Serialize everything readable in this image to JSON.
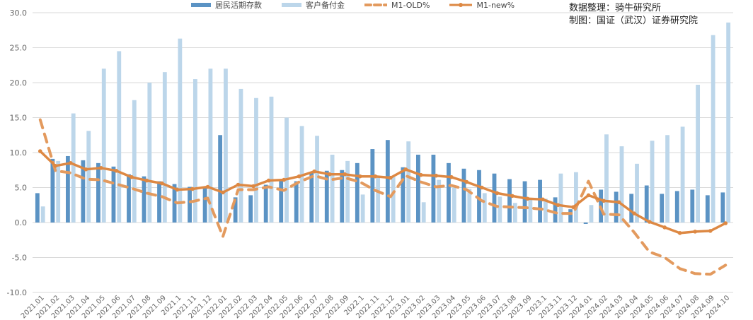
{
  "credits": {
    "source": "数据整理：骑牛研究所",
    "maker": "制图：国证（武汉）证券研究院"
  },
  "colors": {
    "deposit": "#5b93c4",
    "client": "#bcd6ea",
    "m1_old": "#e39a5e",
    "m1_new": "#dd8843",
    "grid": "#d9d9d9",
    "tick": "#666666"
  },
  "chart_data": {
    "type": "bar",
    "title": "",
    "xlabel": "",
    "ylabel": "",
    "ylim": [
      -10,
      30
    ],
    "yticks": [
      "-10.0",
      "-5.0",
      "0.0",
      "5.0",
      "10.0",
      "15.0",
      "20.0",
      "25.0",
      "30.0"
    ],
    "grid": true,
    "legend_position": "top",
    "categories": [
      "2021.01",
      "2021.02",
      "2021.03",
      "2021.04",
      "2021.05",
      "2021.06",
      "2021.07",
      "2021.08",
      "2021.09",
      "2021.1",
      "2021.11",
      "2021.12",
      "2022.01",
      "2022.02",
      "2022.03",
      "2022.04",
      "2022.05",
      "2022.06",
      "2022.07",
      "2022.08",
      "2022.09",
      "2022.1",
      "2022.11",
      "2022.12",
      "2023.01",
      "2023.02",
      "2023.03",
      "2023.04",
      "2023.05",
      "2023.06",
      "2023.07",
      "2023.08",
      "2023.09",
      "2023.1",
      "2023.11",
      "2023.12",
      "2024.01",
      "2024.02",
      "2024.03",
      "2024.04",
      "2024.05",
      "2024.06",
      "2024.07",
      "2024.08",
      "2024.09",
      "2024.10"
    ],
    "series": [
      {
        "name": "居民活期存款",
        "kind": "bar",
        "values": [
          4.2,
          9.1,
          9.5,
          8.9,
          8.5,
          8.0,
          6.9,
          6.6,
          5.9,
          5.5,
          5.1,
          5.0,
          12.5,
          3.6,
          3.9,
          5.4,
          6.2,
          5.9,
          7.2,
          7.4,
          7.5,
          8.5,
          10.5,
          11.8,
          7.9,
          9.7,
          9.7,
          8.5,
          7.7,
          7.5,
          7.0,
          6.2,
          5.9,
          6.1,
          3.6,
          1.9,
          -0.2,
          4.7,
          4.4,
          4.1,
          5.3,
          4.1,
          4.5,
          4.7,
          3.9,
          4.3
        ]
      },
      {
        "name": "客户备付金",
        "kind": "bar",
        "values": [
          2.3,
          8.8,
          15.6,
          13.1,
          22.0,
          24.5,
          17.5,
          20.0,
          21.5,
          26.3,
          20.5,
          22.0,
          22.0,
          19.1,
          17.8,
          18.0,
          15.0,
          13.8,
          12.4,
          9.7,
          8.8,
          4.0,
          6.5,
          6.5,
          11.6,
          2.9,
          6.1,
          5.0,
          4.8,
          4.2,
          3.7,
          2.8,
          3.5,
          3.4,
          7.0,
          7.2,
          2.5,
          12.6,
          10.9,
          8.4,
          11.7,
          12.5,
          13.7,
          19.7,
          26.8,
          28.6
        ]
      },
      {
        "name": "M1-OLD%",
        "kind": "dashed-line",
        "values": [
          14.7,
          7.4,
          7.1,
          6.2,
          6.1,
          5.5,
          4.9,
          4.2,
          3.7,
          2.8,
          3.0,
          3.5,
          -2.0,
          4.7,
          4.7,
          5.1,
          4.6,
          5.8,
          6.7,
          6.1,
          6.4,
          5.8,
          4.6,
          3.7,
          6.7,
          5.8,
          5.1,
          5.3,
          4.7,
          3.1,
          2.3,
          2.2,
          2.1,
          1.9,
          1.3,
          1.3,
          5.9,
          1.2,
          1.1,
          -1.4,
          -4.2,
          -5.0,
          -6.6,
          -7.3,
          -7.4,
          -6.1
        ]
      },
      {
        "name": "M1-new%",
        "kind": "line",
        "values": [
          10.2,
          8.1,
          8.5,
          7.6,
          7.8,
          7.4,
          6.5,
          6.0,
          5.6,
          4.7,
          4.8,
          5.1,
          4.3,
          5.4,
          5.2,
          6.0,
          6.1,
          6.6,
          7.3,
          6.9,
          6.9,
          6.6,
          6.6,
          6.4,
          7.6,
          6.8,
          6.7,
          6.5,
          5.8,
          5.0,
          4.2,
          3.8,
          3.4,
          3.3,
          2.5,
          2.2,
          3.9,
          3.1,
          2.9,
          1.3,
          0.1,
          -0.7,
          -1.5,
          -1.3,
          -1.2,
          -0.1
        ]
      }
    ]
  }
}
